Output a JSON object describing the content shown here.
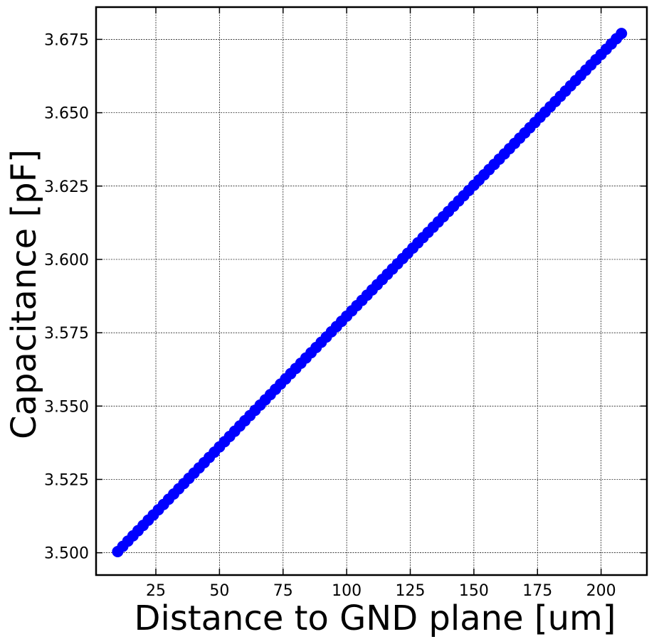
{
  "chart_data": {
    "type": "scatter",
    "xlabel": "Distance to GND plane [um]",
    "ylabel": "Capacitance [pF]",
    "xlim": [
      1.5,
      218
    ],
    "ylim": [
      3.4924,
      3.686
    ],
    "x_ticks": [
      25,
      50,
      75,
      100,
      125,
      150,
      175,
      200
    ],
    "x_tick_labels": [
      "25",
      "50",
      "75",
      "100",
      "125",
      "150",
      "175",
      "200"
    ],
    "y_ticks": [
      3.5,
      3.525,
      3.55,
      3.575,
      3.6,
      3.625,
      3.65,
      3.675
    ],
    "y_tick_labels": [
      "3.500",
      "3.525",
      "3.550",
      "3.575",
      "3.600",
      "3.625",
      "3.650",
      "3.675"
    ],
    "grid": true,
    "marker_color": "#0000ff",
    "series": [
      {
        "x_start": 10,
        "x_end": 208,
        "x_step": 2,
        "y_start": 3.5004,
        "y_end": 3.677,
        "note_values": "linear trend: capacitance rises from 3.5004 pF at 10 um to 3.677 pF at 208 um"
      }
    ]
  }
}
